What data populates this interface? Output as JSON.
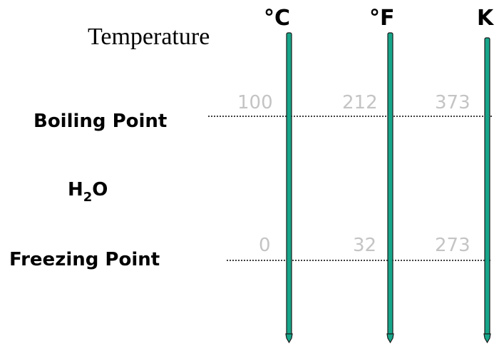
{
  "title": "Temperature",
  "substance": {
    "base": "H",
    "subscript": "2",
    "tail": "O"
  },
  "scales": [
    {
      "unit": "°C",
      "boiling": "100",
      "freezing": "0"
    },
    {
      "unit": "°F",
      "boiling": "212",
      "freezing": "32"
    },
    {
      "unit": "K",
      "boiling": "373",
      "freezing": "273"
    }
  ],
  "reference_points": {
    "boiling_label": "Boiling Point",
    "freezing_label": "Freezing Point"
  },
  "colors": {
    "thermometer": "#17a589",
    "value_text": "#c4c4c4",
    "text": "#000000"
  }
}
